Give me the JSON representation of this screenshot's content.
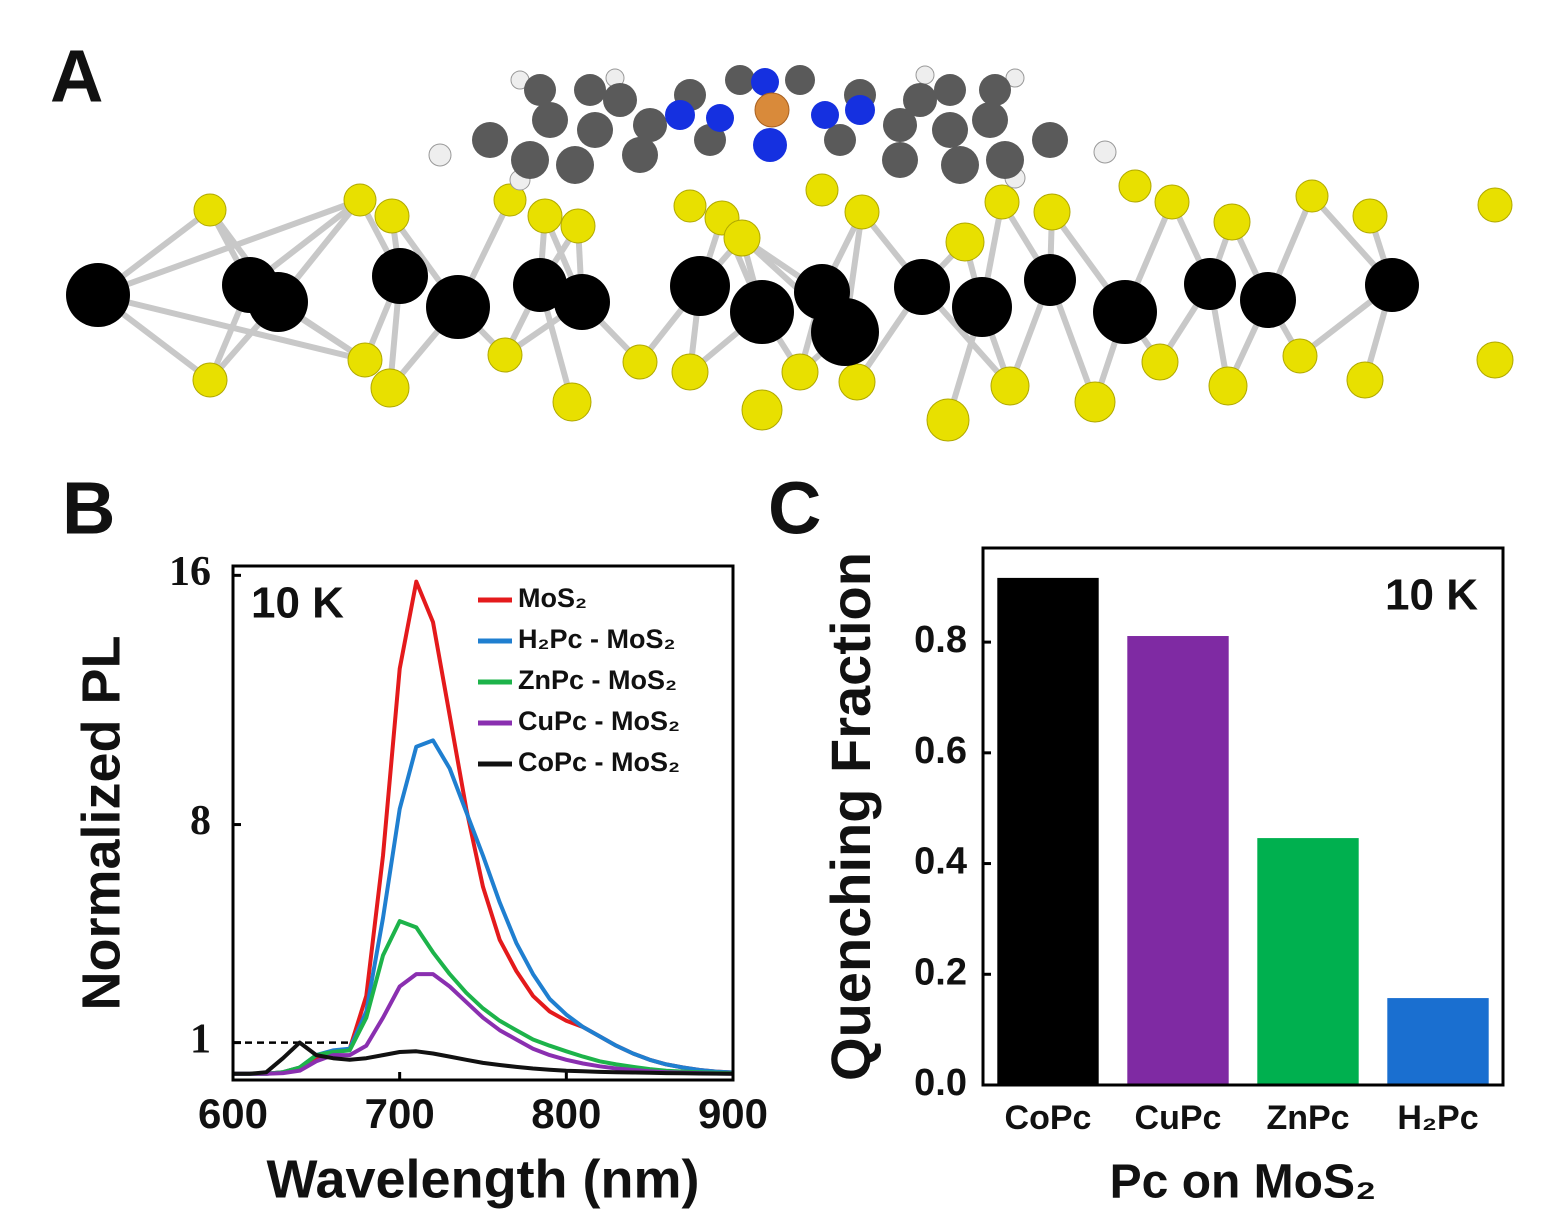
{
  "panel_labels": [
    "A",
    "B",
    "C"
  ],
  "chart_data": [
    {
      "type": "line",
      "annotation": "10 K",
      "xlabel": "Wavelength (nm)",
      "ylabel": "Normalized PL",
      "x": [
        600,
        610,
        620,
        630,
        640,
        650,
        660,
        670,
        680,
        690,
        700,
        710,
        720,
        730,
        740,
        750,
        760,
        770,
        780,
        790,
        800,
        810,
        820,
        830,
        840,
        850,
        860,
        870,
        880,
        890,
        900
      ],
      "xlim": [
        600,
        900
      ],
      "xticks": [
        600,
        700,
        800,
        900
      ],
      "ylim": [
        -0.2,
        16.3
      ],
      "yticks": [
        1,
        8,
        16
      ],
      "reference_line": {
        "y": 1,
        "x": [
          600,
          673
        ]
      },
      "series": [
        {
          "name": "MoS₂",
          "color": "#e41a1c",
          "values": [
            0,
            0,
            0,
            0.05,
            0.2,
            0.5,
            0.7,
            0.8,
            2.5,
            7,
            13,
            15.8,
            14.5,
            11.5,
            8.5,
            6,
            4.3,
            3.3,
            2.5,
            2.0,
            1.7,
            1.5,
            1.2,
            0.9,
            0.65,
            0.45,
            0.3,
            0.2,
            0.12,
            0.07,
            0.04
          ]
        },
        {
          "name": "H₂Pc - MoS₂",
          "color": "#1f7fd0",
          "values": [
            0,
            0,
            0,
            0.05,
            0.2,
            0.6,
            0.75,
            0.8,
            2.0,
            5,
            8.5,
            10.5,
            10.7,
            9.8,
            8.4,
            7,
            5.5,
            4.2,
            3.2,
            2.4,
            1.9,
            1.5,
            1.2,
            0.9,
            0.65,
            0.45,
            0.3,
            0.2,
            0.12,
            0.07,
            0.04
          ]
        },
        {
          "name": "ZnPc - MoS₂",
          "color": "#1db34a",
          "values": [
            0,
            0,
            0,
            0.05,
            0.2,
            0.6,
            0.7,
            0.75,
            1.8,
            3.8,
            4.9,
            4.7,
            3.9,
            3.2,
            2.6,
            2.1,
            1.7,
            1.4,
            1.1,
            0.9,
            0.72,
            0.55,
            0.4,
            0.3,
            0.22,
            0.15,
            0.1,
            0.07,
            0.05,
            0.03,
            0.02
          ]
        },
        {
          "name": "CuPc - MoS₂",
          "color": "#8a2fb0",
          "values": [
            0,
            0,
            0,
            0.02,
            0.1,
            0.4,
            0.6,
            0.6,
            0.9,
            1.8,
            2.8,
            3.2,
            3.2,
            2.8,
            2.3,
            1.8,
            1.4,
            1.1,
            0.8,
            0.6,
            0.45,
            0.33,
            0.24,
            0.17,
            0.12,
            0.08,
            0.05,
            0.03,
            0.02,
            0.01,
            0
          ]
        },
        {
          "name": "CoPc - MoS₂",
          "color": "#111111",
          "values": [
            0,
            0,
            0.05,
            0.5,
            1.0,
            0.6,
            0.5,
            0.45,
            0.5,
            0.6,
            0.7,
            0.72,
            0.65,
            0.55,
            0.45,
            0.35,
            0.28,
            0.22,
            0.17,
            0.13,
            0.1,
            0.08,
            0.06,
            0.05,
            0.04,
            0.03,
            0.02,
            0.015,
            0.01,
            0.005,
            0
          ]
        }
      ]
    },
    {
      "type": "bar",
      "annotation": "10 K",
      "xlabel": "Pc on MoS₂",
      "ylabel": "Quenching Fraction",
      "categories": [
        "CoPc",
        "CuPc",
        "ZnPc",
        "H₂Pc"
      ],
      "values": [
        0.916,
        0.811,
        0.446,
        0.157
      ],
      "colors": [
        "#000000",
        "#7f2aa3",
        "#00b04f",
        "#1a6fd0"
      ],
      "ylim": [
        0,
        0.97
      ],
      "yticks": [
        {
          "value": 0,
          "label": "0.0"
        },
        0.2,
        0.4,
        0.6,
        0.8
      ]
    }
  ]
}
